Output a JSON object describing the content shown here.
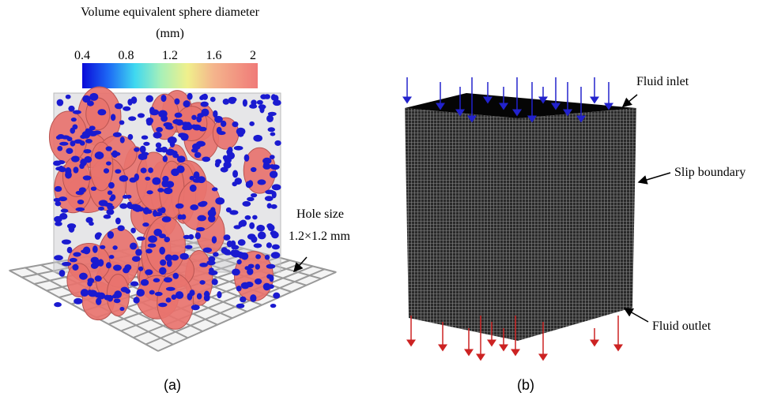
{
  "panel_a": {
    "colorbar": {
      "title_line1": "Volume equivalent sphere diameter",
      "title_line2": "(mm)",
      "ticks": [
        "0.4",
        "0.8",
        "1.2",
        "1.6",
        "2"
      ]
    },
    "annotation_line1": "Hole size",
    "annotation_line2": "1.2×1.2 mm",
    "caption": "(a)"
  },
  "panel_b": {
    "inlet_label": "Fluid inlet",
    "boundary_label": "Slip boundary",
    "outlet_label": "Fluid outlet",
    "caption": "(b)"
  }
}
